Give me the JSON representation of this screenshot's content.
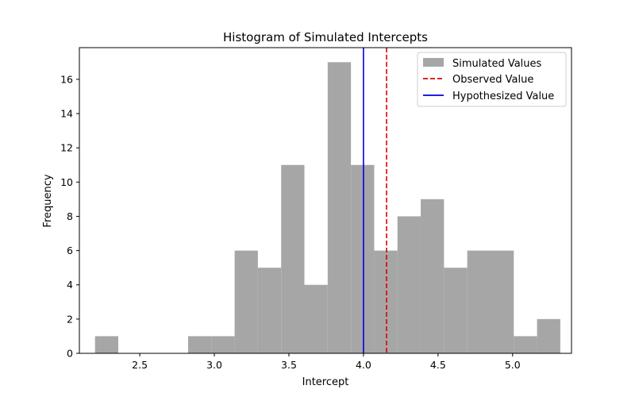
{
  "chart_data": {
    "type": "bar",
    "title": "Histogram of Simulated Intercepts",
    "xlabel": "Intercept",
    "ylabel": "Frequency",
    "xlim": [
      2.095,
      5.395
    ],
    "ylim": [
      0,
      17.85
    ],
    "xticks": [
      2.5,
      3.0,
      3.5,
      4.0,
      4.5,
      5.0
    ],
    "xtick_labels": [
      "2.5",
      "3.0",
      "3.5",
      "4.0",
      "4.5",
      "5.0"
    ],
    "yticks": [
      0,
      2,
      4,
      6,
      8,
      10,
      12,
      14,
      16
    ],
    "ytick_labels": [
      "0",
      "2",
      "4",
      "6",
      "8",
      "10",
      "12",
      "14",
      "16"
    ],
    "grid": false,
    "bins": {
      "start": 2.2,
      "width": 0.156,
      "counts": [
        1,
        0,
        0,
        0,
        1,
        1,
        6,
        5,
        11,
        4,
        17,
        11,
        6,
        8,
        9,
        5,
        6,
        6,
        1,
        2
      ]
    },
    "series": [
      {
        "name": "Simulated Values",
        "kind": "histogram",
        "color": "#a6a6a6"
      },
      {
        "name": "Observed Value",
        "kind": "vline",
        "x": 4.155,
        "color": "#e00000",
        "style": "dashed"
      },
      {
        "name": "Hypothesized Value",
        "kind": "vline",
        "x": 4.0,
        "color": "#0000e0",
        "style": "solid"
      }
    ],
    "legend": {
      "position": "top-right",
      "entries": [
        "Simulated Values",
        "Observed Value",
        "Hypothesized Value"
      ]
    }
  }
}
